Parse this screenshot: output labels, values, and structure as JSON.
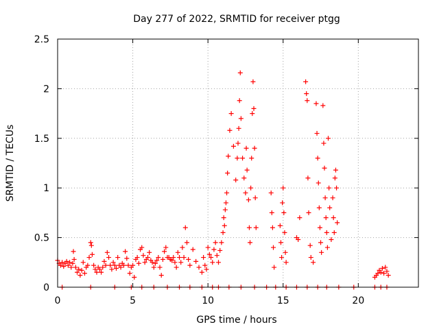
{
  "chart_data": {
    "type": "scatter",
    "title": "Day 277 of 2022, SRMTID for receiver ptgg",
    "xlabel": "GPS time / hours",
    "ylabel": "SRMTID / TECUs",
    "xlim": [
      0,
      24
    ],
    "ylim": [
      0,
      2.5
    ],
    "xticks": [
      0,
      5,
      10,
      15,
      20
    ],
    "yticks": [
      0,
      0.5,
      1,
      1.5,
      2,
      2.5
    ],
    "xtick_labels": [
      "0",
      "5",
      "10",
      "15",
      "20"
    ],
    "ytick_labels": [
      "0",
      "0.5",
      "1",
      "1.5",
      "2",
      "2.5"
    ],
    "grid": true,
    "marker": "+",
    "color": "#ff0000",
    "series": [
      {
        "name": "SRMTID",
        "points": [
          [
            0.0,
            0.27
          ],
          [
            0.1,
            0.24
          ],
          [
            0.2,
            0.22
          ],
          [
            0.3,
            0.25
          ],
          [
            0.4,
            0.21
          ],
          [
            0.5,
            0.24
          ],
          [
            0.6,
            0.26
          ],
          [
            0.7,
            0.22
          ],
          [
            0.8,
            0.25
          ],
          [
            0.9,
            0.2
          ],
          [
            1.0,
            0.24
          ],
          [
            1.05,
            0.36
          ],
          [
            1.1,
            0.28
          ],
          [
            1.2,
            0.2
          ],
          [
            1.3,
            0.15
          ],
          [
            1.4,
            0.18
          ],
          [
            1.5,
            0.12
          ],
          [
            1.6,
            0.17
          ],
          [
            1.7,
            0.25
          ],
          [
            1.8,
            0.14
          ],
          [
            1.9,
            0.2
          ],
          [
            2.0,
            0.22
          ],
          [
            2.1,
            0.3
          ],
          [
            2.2,
            0.45
          ],
          [
            2.25,
            0.42
          ],
          [
            2.3,
            0.33
          ],
          [
            2.4,
            0.22
          ],
          [
            2.5,
            0.18
          ],
          [
            2.6,
            0.15
          ],
          [
            2.7,
            0.2
          ],
          [
            2.8,
            0.18
          ],
          [
            2.9,
            0.15
          ],
          [
            3.0,
            0.2
          ],
          [
            3.1,
            0.26
          ],
          [
            3.2,
            0.22
          ],
          [
            3.3,
            0.35
          ],
          [
            3.4,
            0.3
          ],
          [
            3.5,
            0.22
          ],
          [
            3.6,
            0.18
          ],
          [
            3.7,
            0.25
          ],
          [
            3.8,
            0.22
          ],
          [
            3.9,
            0.19
          ],
          [
            4.0,
            0.3
          ],
          [
            4.1,
            0.22
          ],
          [
            4.2,
            0.2
          ],
          [
            4.3,
            0.24
          ],
          [
            4.4,
            0.22
          ],
          [
            4.5,
            0.36
          ],
          [
            4.6,
            0.29
          ],
          [
            4.7,
            0.22
          ],
          [
            4.8,
            0.14
          ],
          [
            4.9,
            0.2
          ],
          [
            5.0,
            0.22
          ],
          [
            5.1,
            0.1
          ],
          [
            5.2,
            0.28
          ],
          [
            5.3,
            0.3
          ],
          [
            5.4,
            0.24
          ],
          [
            5.5,
            0.38
          ],
          [
            5.6,
            0.4
          ],
          [
            5.7,
            0.32
          ],
          [
            5.8,
            0.25
          ],
          [
            5.9,
            0.28
          ],
          [
            6.0,
            0.3
          ],
          [
            6.1,
            0.35
          ],
          [
            6.2,
            0.27
          ],
          [
            6.3,
            0.25
          ],
          [
            6.4,
            0.2
          ],
          [
            6.5,
            0.24
          ],
          [
            6.6,
            0.27
          ],
          [
            6.7,
            0.3
          ],
          [
            6.8,
            0.2
          ],
          [
            6.9,
            0.12
          ],
          [
            7.0,
            0.28
          ],
          [
            7.1,
            0.36
          ],
          [
            7.2,
            0.4
          ],
          [
            7.3,
            0.3
          ],
          [
            7.4,
            0.3
          ],
          [
            7.5,
            0.28
          ],
          [
            7.6,
            0.27
          ],
          [
            7.7,
            0.3
          ],
          [
            7.8,
            0.25
          ],
          [
            7.9,
            0.2
          ],
          [
            8.0,
            0.35
          ],
          [
            8.1,
            0.3
          ],
          [
            8.2,
            0.25
          ],
          [
            8.3,
            0.4
          ],
          [
            8.4,
            0.3
          ],
          [
            8.5,
            0.6
          ],
          [
            8.6,
            0.45
          ],
          [
            8.7,
            0.28
          ],
          [
            8.8,
            0.22
          ],
          [
            9.0,
            0.38
          ],
          [
            9.2,
            0.26
          ],
          [
            9.4,
            0.2
          ],
          [
            9.6,
            0.15
          ],
          [
            9.7,
            0.3
          ],
          [
            9.8,
            0.22
          ],
          [
            9.9,
            0.18
          ],
          [
            10.0,
            0.4
          ],
          [
            10.1,
            0.33
          ],
          [
            10.2,
            0.3
          ],
          [
            10.3,
            0.25
          ],
          [
            10.4,
            0.38
          ],
          [
            10.5,
            0.45
          ],
          [
            10.6,
            0.32
          ],
          [
            10.7,
            0.25
          ],
          [
            10.8,
            0.37
          ],
          [
            10.9,
            0.45
          ],
          [
            11.0,
            0.55
          ],
          [
            11.05,
            0.7
          ],
          [
            11.1,
            0.62
          ],
          [
            11.15,
            0.78
          ],
          [
            11.2,
            0.85
          ],
          [
            11.25,
            0.95
          ],
          [
            11.3,
            1.15
          ],
          [
            11.35,
            1.32
          ],
          [
            11.45,
            1.58
          ],
          [
            11.55,
            1.75
          ],
          [
            11.7,
            1.42
          ],
          [
            11.85,
            1.08
          ],
          [
            11.95,
            1.3
          ],
          [
            12.0,
            1.45
          ],
          [
            12.05,
            1.6
          ],
          [
            12.1,
            1.88
          ],
          [
            12.15,
            2.16
          ],
          [
            12.2,
            1.7
          ],
          [
            12.3,
            1.3
          ],
          [
            12.4,
            1.1
          ],
          [
            12.5,
            0.95
          ],
          [
            12.55,
            1.4
          ],
          [
            12.6,
            1.18
          ],
          [
            12.7,
            0.88
          ],
          [
            12.75,
            0.6
          ],
          [
            12.8,
            0.45
          ],
          [
            12.85,
            1.0
          ],
          [
            12.9,
            1.3
          ],
          [
            12.95,
            1.75
          ],
          [
            13.0,
            2.07
          ],
          [
            13.05,
            1.8
          ],
          [
            13.1,
            1.4
          ],
          [
            13.15,
            0.9
          ],
          [
            13.2,
            0.6
          ],
          [
            14.2,
            0.95
          ],
          [
            14.25,
            0.75
          ],
          [
            14.3,
            0.6
          ],
          [
            14.35,
            0.4
          ],
          [
            14.4,
            0.2
          ],
          [
            14.8,
            0.62
          ],
          [
            14.85,
            0.45
          ],
          [
            14.9,
            0.3
          ],
          [
            14.95,
            0.85
          ],
          [
            15.0,
            1.0
          ],
          [
            15.05,
            0.75
          ],
          [
            15.1,
            0.55
          ],
          [
            15.15,
            0.35
          ],
          [
            15.2,
            0.25
          ],
          [
            15.9,
            0.5
          ],
          [
            16.0,
            0.48
          ],
          [
            16.1,
            0.7
          ],
          [
            16.5,
            2.07
          ],
          [
            16.55,
            1.95
          ],
          [
            16.6,
            1.88
          ],
          [
            16.65,
            1.1
          ],
          [
            16.7,
            0.75
          ],
          [
            16.8,
            0.42
          ],
          [
            16.85,
            0.3
          ],
          [
            17.0,
            0.25
          ],
          [
            17.2,
            1.85
          ],
          [
            17.25,
            1.55
          ],
          [
            17.3,
            1.3
          ],
          [
            17.35,
            1.05
          ],
          [
            17.4,
            0.8
          ],
          [
            17.45,
            0.6
          ],
          [
            17.5,
            0.45
          ],
          [
            17.55,
            0.35
          ],
          [
            17.65,
            1.83
          ],
          [
            17.7,
            1.45
          ],
          [
            17.75,
            1.2
          ],
          [
            17.8,
            0.9
          ],
          [
            17.85,
            0.7
          ],
          [
            17.9,
            0.55
          ],
          [
            17.95,
            0.4
          ],
          [
            18.0,
            1.5
          ],
          [
            18.05,
            1.0
          ],
          [
            18.1,
            0.8
          ],
          [
            18.2,
            0.48
          ],
          [
            18.3,
            0.9
          ],
          [
            18.35,
            0.7
          ],
          [
            18.4,
            0.55
          ],
          [
            18.45,
            1.1
          ],
          [
            18.5,
            1.18
          ],
          [
            18.55,
            1.0
          ],
          [
            18.6,
            0.65
          ],
          [
            21.1,
            0.1
          ],
          [
            21.2,
            0.12
          ],
          [
            21.3,
            0.14
          ],
          [
            21.4,
            0.17
          ],
          [
            21.5,
            0.15
          ],
          [
            21.6,
            0.19
          ],
          [
            21.7,
            0.14
          ],
          [
            21.8,
            0.2
          ],
          [
            21.9,
            0.16
          ],
          [
            22.0,
            0.12
          ],
          [
            0.3,
            0.0
          ],
          [
            2.2,
            0.0
          ],
          [
            3.8,
            0.0
          ],
          [
            4.9,
            0.0
          ],
          [
            5.6,
            0.0
          ],
          [
            6.4,
            0.0
          ],
          [
            7.3,
            0.0
          ],
          [
            8.1,
            0.0
          ],
          [
            8.8,
            0.0
          ],
          [
            9.6,
            0.0
          ],
          [
            10.3,
            0.0
          ],
          [
            10.7,
            0.0
          ],
          [
            11.4,
            0.0
          ],
          [
            12.2,
            0.0
          ],
          [
            13.1,
            0.0
          ],
          [
            13.9,
            0.0
          ],
          [
            14.5,
            0.0
          ],
          [
            15.2,
            0.0
          ],
          [
            15.9,
            0.0
          ],
          [
            16.6,
            0.0
          ],
          [
            17.3,
            0.0
          ],
          [
            17.9,
            0.0
          ],
          [
            18.7,
            0.0
          ],
          [
            19.7,
            0.0
          ],
          [
            21.1,
            0.0
          ],
          [
            21.5,
            0.0
          ],
          [
            21.9,
            0.0
          ]
        ]
      }
    ]
  }
}
